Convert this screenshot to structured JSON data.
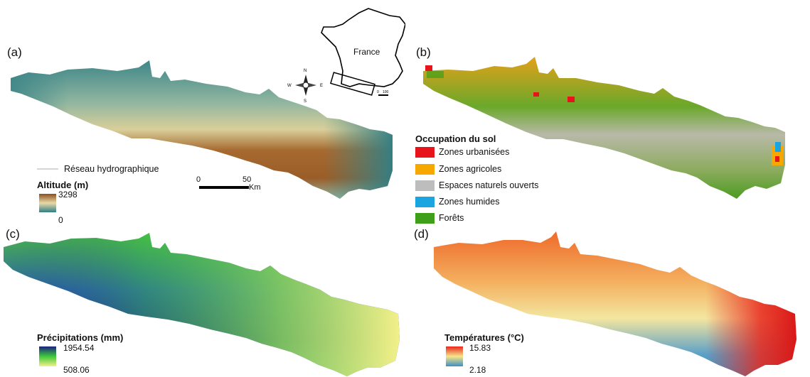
{
  "panels": {
    "a": {
      "label": "(a)",
      "river_label": "Réseau hydrographique",
      "legend_title": "Altitude (m)",
      "legend_max": "3298",
      "legend_min": "0",
      "colors": {
        "high": "#8a4f1c",
        "mid": "#e9d9a8",
        "low": "#2f7f86"
      },
      "scale": {
        "zero": "0",
        "fifty": "50",
        "unit": "Km"
      },
      "inset": {
        "country": "France",
        "zero": "0",
        "hundred": "100"
      },
      "compass": {
        "n": "N",
        "s": "S",
        "e": "E",
        "w": "W"
      }
    },
    "b": {
      "label": "(b)",
      "legend_title": "Occupation du sol",
      "classes": [
        {
          "label": "Zones urbanisées",
          "color": "#e8141c"
        },
        {
          "label": "Zones agricoles",
          "color": "#f7a800"
        },
        {
          "label": "Espaces naturels ouverts",
          "color": "#bdbdbd"
        },
        {
          "label": "Zones humides",
          "color": "#1aa5e0"
        },
        {
          "label": "Forêts",
          "color": "#3f9e1a"
        }
      ]
    },
    "c": {
      "label": "(c)",
      "legend_title": "Précipitations (mm)",
      "legend_max": "1954.54",
      "legend_min": "508.06",
      "colors": {
        "high": "#1a237e",
        "mid": "#3ec93a",
        "low": "#f3f08a"
      }
    },
    "d": {
      "label": "(d)",
      "legend_title": "Températures (°C)",
      "legend_max": "15.83",
      "legend_min": "2.18",
      "colors": {
        "high": "#e8281e",
        "mid": "#f6e58a",
        "low": "#3d8fc4"
      }
    }
  }
}
